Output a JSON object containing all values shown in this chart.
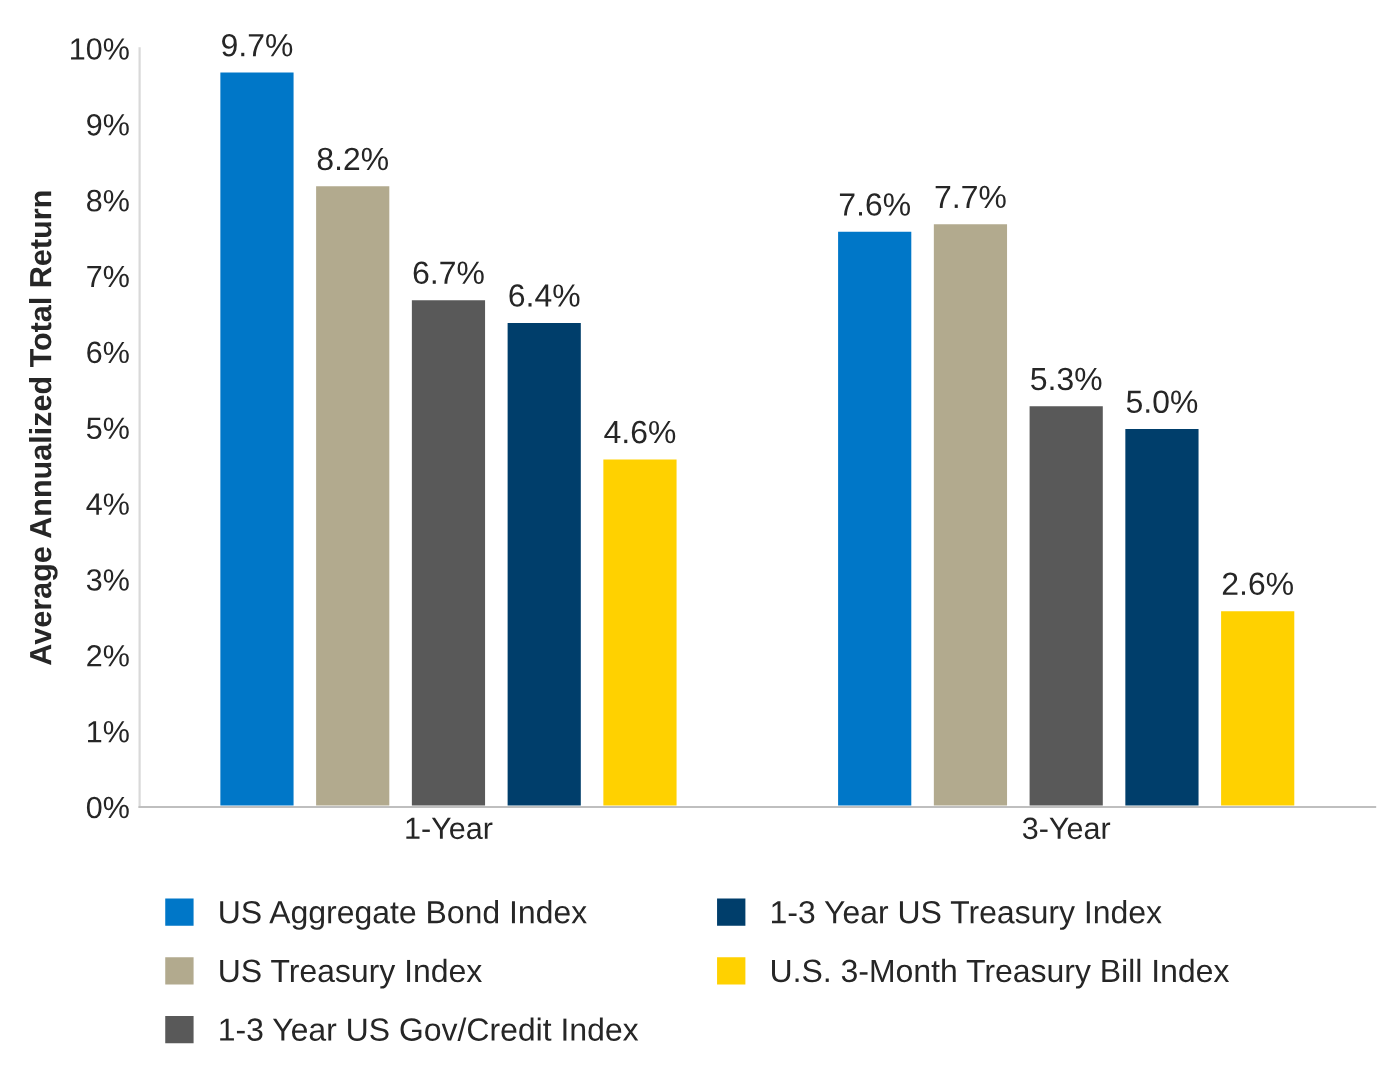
{
  "chart_data": {
    "type": "bar",
    "ylabel": "Average Annualized Total Return",
    "categories": [
      "1-Year",
      "3-Year"
    ],
    "series": [
      {
        "name": "US Aggregate Bond Index",
        "color": "#0077c8",
        "values": [
          9.7,
          7.6
        ],
        "value_labels": [
          "9.7%",
          "7.6%"
        ]
      },
      {
        "name": "US Treasury Index",
        "color": "#b2aa8e",
        "values": [
          8.2,
          7.7
        ],
        "value_labels": [
          "8.2%",
          "7.7%"
        ]
      },
      {
        "name": "1-3 Year US Gov/Credit Index",
        "color": "#595959",
        "values": [
          6.7,
          5.3
        ],
        "value_labels": [
          "6.7%",
          "5.3%"
        ]
      },
      {
        "name": "1-3 Year US Treasury Index",
        "color": "#003e6b",
        "values": [
          6.4,
          5.0
        ],
        "value_labels": [
          "6.4%",
          "5.0%"
        ]
      },
      {
        "name": "U.S. 3-Month Treasury Bill Index",
        "color": "#ffd100",
        "values": [
          4.6,
          2.6
        ],
        "value_labels": [
          "4.6%",
          "2.6%"
        ]
      }
    ],
    "ylim": [
      0,
      10
    ],
    "yticks": [
      {
        "value": 0,
        "label": "0%"
      },
      {
        "value": 1,
        "label": "1%"
      },
      {
        "value": 2,
        "label": "2%"
      },
      {
        "value": 3,
        "label": "3%"
      },
      {
        "value": 4,
        "label": "4%"
      },
      {
        "value": 5,
        "label": "5%"
      },
      {
        "value": 6,
        "label": "6%"
      },
      {
        "value": 7,
        "label": "7%"
      },
      {
        "value": 8,
        "label": "8%"
      },
      {
        "value": 9,
        "label": "9%"
      },
      {
        "value": 10,
        "label": "10%"
      }
    ],
    "grid": false,
    "legend": "bottom"
  }
}
